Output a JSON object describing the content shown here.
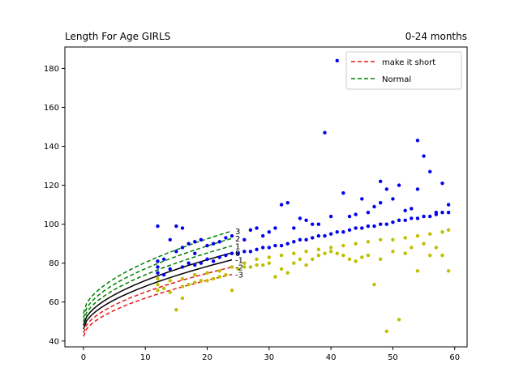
{
  "chart_data": {
    "type": "scatter",
    "title": "Length For Age GIRLS",
    "subtitle": "0-24 months",
    "xlabel": "",
    "ylabel": "",
    "xlim": [
      -3,
      62
    ],
    "ylim": [
      37,
      191
    ],
    "xticks": [
      0,
      10,
      20,
      30,
      40,
      50,
      60
    ],
    "yticks": [
      40,
      60,
      80,
      100,
      120,
      140,
      160,
      180
    ],
    "grid": false,
    "legend_position": "top-right",
    "legend": [
      {
        "label": "make it short",
        "color": "#e41a1c",
        "style": "dashed"
      },
      {
        "label": "Normal",
        "color": "#008000",
        "style": "dashed"
      }
    ],
    "curve_labels": [
      "3",
      "2",
      "1",
      "0",
      "-1",
      "-2",
      "-3"
    ],
    "curves": [
      {
        "z": "3",
        "color": "#008000",
        "style": "dashed",
        "birth": 54.2,
        "at24": 96.5
      },
      {
        "z": "2",
        "color": "#008000",
        "style": "dashed",
        "birth": 52.0,
        "at24": 92.7
      },
      {
        "z": "1",
        "color": "#008000",
        "style": "dashed",
        "birth": 49.9,
        "at24": 88.9
      },
      {
        "z": "0",
        "color": "#000000",
        "style": "solid",
        "birth": 48.0,
        "at24": 85.3
      },
      {
        "z": "-1",
        "color": "#000000",
        "style": "solid",
        "birth": 46.1,
        "at24": 81.7
      },
      {
        "z": "-2",
        "color": "#e41a1c",
        "style": "dashed",
        "birth": 44.2,
        "at24": 78.0
      },
      {
        "z": "-3",
        "color": "#e41a1c",
        "style": "dashed",
        "birth": 42.3,
        "at24": 74.2
      }
    ],
    "series": [
      {
        "color": "#0000ee",
        "points": [
          [
            12,
            99
          ],
          [
            12,
            81
          ],
          [
            12,
            78
          ],
          [
            13,
            82
          ],
          [
            14,
            92
          ],
          [
            15,
            99
          ],
          [
            15,
            86
          ],
          [
            16,
            98
          ],
          [
            16,
            88
          ],
          [
            17,
            90
          ],
          [
            18,
            91
          ],
          [
            18,
            85
          ],
          [
            19,
            92
          ],
          [
            20,
            89
          ],
          [
            21,
            90
          ],
          [
            22,
            91
          ],
          [
            23,
            93
          ],
          [
            24,
            94
          ],
          [
            26,
            92
          ],
          [
            27,
            97
          ],
          [
            28,
            98
          ],
          [
            29,
            94
          ],
          [
            30,
            96
          ],
          [
            31,
            98
          ],
          [
            32,
            110
          ],
          [
            33,
            111
          ],
          [
            34,
            98
          ],
          [
            35,
            103
          ],
          [
            36,
            102
          ],
          [
            37,
            100
          ],
          [
            38,
            100
          ],
          [
            39,
            147
          ],
          [
            40,
            104
          ],
          [
            41,
            184
          ],
          [
            42,
            116
          ],
          [
            43,
            104
          ],
          [
            44,
            105
          ],
          [
            45,
            113
          ],
          [
            46,
            106
          ],
          [
            47,
            109
          ],
          [
            48,
            111
          ],
          [
            48,
            122
          ],
          [
            49,
            118
          ],
          [
            50,
            113
          ],
          [
            51,
            120
          ],
          [
            52,
            107
          ],
          [
            53,
            108
          ],
          [
            54,
            143
          ],
          [
            54,
            118
          ],
          [
            55,
            135
          ],
          [
            56,
            127
          ],
          [
            57,
            106
          ],
          [
            58,
            121
          ],
          [
            59,
            110
          ],
          [
            12,
            75
          ],
          [
            13,
            74
          ],
          [
            14,
            77
          ],
          [
            16,
            78
          ],
          [
            17,
            80
          ],
          [
            18,
            79
          ],
          [
            19,
            80
          ],
          [
            20,
            82
          ],
          [
            21,
            81
          ],
          [
            22,
            83
          ],
          [
            23,
            84
          ],
          [
            24,
            85
          ],
          [
            25,
            85
          ],
          [
            26,
            86
          ],
          [
            27,
            86
          ],
          [
            28,
            87
          ],
          [
            29,
            88
          ],
          [
            30,
            88
          ],
          [
            31,
            89
          ],
          [
            32,
            89
          ],
          [
            33,
            90
          ],
          [
            34,
            91
          ],
          [
            35,
            92
          ],
          [
            36,
            92
          ],
          [
            37,
            93
          ],
          [
            38,
            94
          ],
          [
            39,
            94
          ],
          [
            40,
            95
          ],
          [
            41,
            96
          ],
          [
            42,
            96
          ],
          [
            43,
            97
          ],
          [
            44,
            98
          ],
          [
            45,
            98
          ],
          [
            46,
            99
          ],
          [
            47,
            99
          ],
          [
            48,
            100
          ],
          [
            49,
            100
          ],
          [
            50,
            101
          ],
          [
            51,
            102
          ],
          [
            52,
            102
          ],
          [
            53,
            103
          ],
          [
            54,
            103
          ],
          [
            55,
            104
          ],
          [
            56,
            104
          ],
          [
            57,
            105
          ],
          [
            58,
            106
          ],
          [
            59,
            106
          ]
        ]
      },
      {
        "color": "#bfbf00",
        "points": [
          [
            12,
            69
          ],
          [
            12,
            66
          ],
          [
            13,
            67
          ],
          [
            14,
            65
          ],
          [
            15,
            56
          ],
          [
            16,
            62
          ],
          [
            16,
            68
          ],
          [
            17,
            69
          ],
          [
            18,
            70
          ],
          [
            19,
            71
          ],
          [
            20,
            71
          ],
          [
            21,
            72
          ],
          [
            22,
            73
          ],
          [
            23,
            74
          ],
          [
            24,
            66
          ],
          [
            25,
            77
          ],
          [
            26,
            78
          ],
          [
            27,
            78
          ],
          [
            28,
            79
          ],
          [
            29,
            79
          ],
          [
            30,
            80
          ],
          [
            31,
            73
          ],
          [
            32,
            77
          ],
          [
            33,
            75
          ],
          [
            34,
            80
          ],
          [
            35,
            82
          ],
          [
            36,
            79
          ],
          [
            37,
            82
          ],
          [
            38,
            84
          ],
          [
            39,
            85
          ],
          [
            40,
            86
          ],
          [
            41,
            85
          ],
          [
            42,
            84
          ],
          [
            43,
            82
          ],
          [
            44,
            81
          ],
          [
            45,
            83
          ],
          [
            46,
            84
          ],
          [
            47,
            69
          ],
          [
            48,
            82
          ],
          [
            49,
            45
          ],
          [
            50,
            86
          ],
          [
            51,
            51
          ],
          [
            52,
            85
          ],
          [
            53,
            88
          ],
          [
            54,
            76
          ],
          [
            55,
            90
          ],
          [
            56,
            84
          ],
          [
            57,
            88
          ],
          [
            58,
            84
          ],
          [
            59,
            76
          ],
          [
            12,
            72
          ],
          [
            14,
            71
          ],
          [
            16,
            72
          ],
          [
            18,
            74
          ],
          [
            20,
            75
          ],
          [
            22,
            76
          ],
          [
            24,
            78
          ],
          [
            26,
            80
          ],
          [
            28,
            82
          ],
          [
            30,
            83
          ],
          [
            32,
            84
          ],
          [
            34,
            85
          ],
          [
            36,
            86
          ],
          [
            38,
            87
          ],
          [
            40,
            88
          ],
          [
            42,
            89
          ],
          [
            44,
            90
          ],
          [
            46,
            91
          ],
          [
            48,
            92
          ],
          [
            50,
            92
          ],
          [
            52,
            93
          ],
          [
            54,
            94
          ],
          [
            56,
            95
          ],
          [
            58,
            96
          ],
          [
            59,
            97
          ]
        ]
      }
    ]
  }
}
